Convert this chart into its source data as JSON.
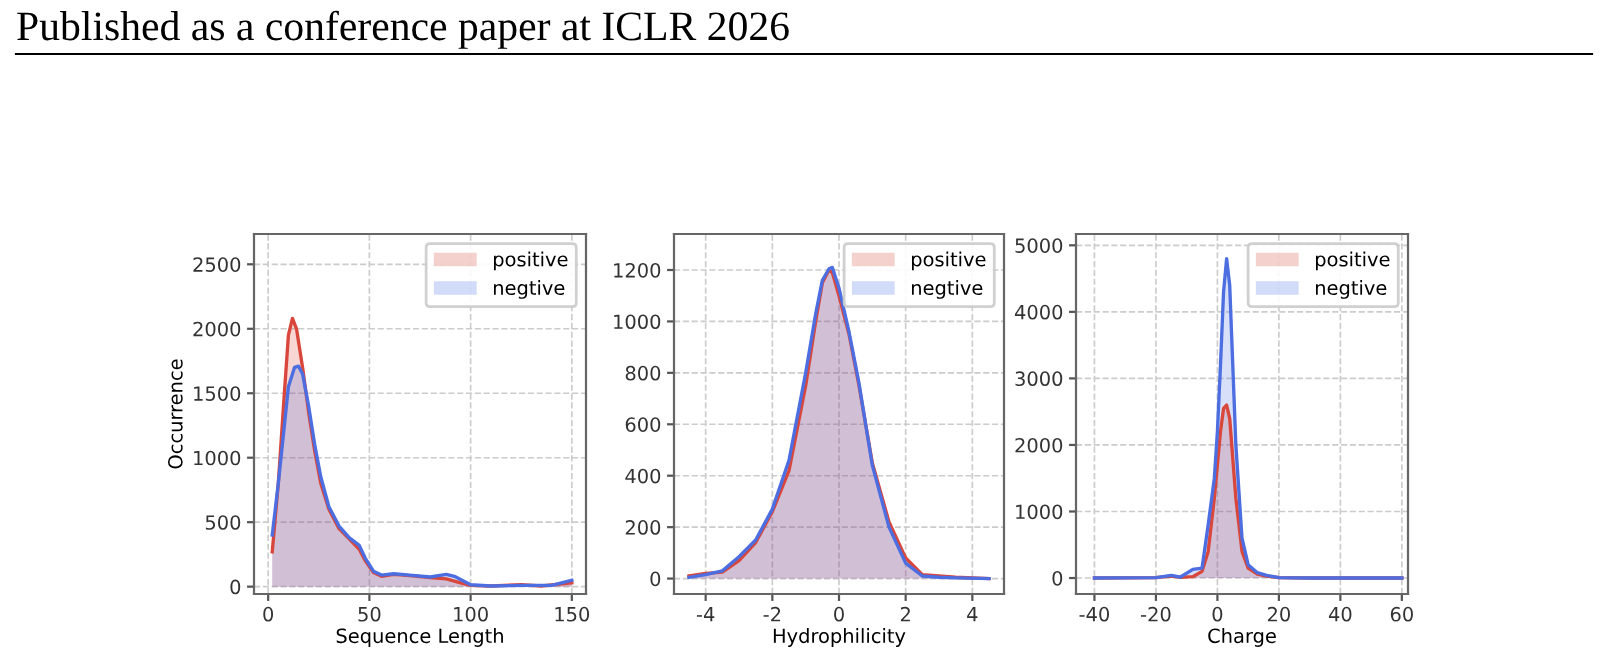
{
  "chart_data": [
    {
      "type": "area",
      "ylabel": "Occurrence",
      "xlabel": "Sequence Length",
      "annotations": [
        "Published as a conference paper at ICLR 2026"
      ],
      "xlim": [
        -7,
        157
      ],
      "xticks": [
        0,
        50,
        100,
        150
      ],
      "ylim": [
        -57,
        2735
      ],
      "yticks": [
        0,
        500,
        1000,
        1500,
        2000,
        2500
      ],
      "grid": true,
      "legend": "top right",
      "series": [
        {
          "name": "positive",
          "color": "#d9463b",
          "x": [
            2,
            5,
            8,
            10,
            12,
            14,
            17,
            20,
            23,
            26,
            30,
            35,
            40,
            45,
            48,
            52,
            56,
            62,
            70,
            80,
            88,
            95,
            100,
            110,
            125,
            135,
            150
          ],
          "values": [
            270,
            800,
            1500,
            1950,
            2080,
            2000,
            1700,
            1350,
            1050,
            800,
            600,
            450,
            370,
            290,
            200,
            110,
            80,
            95,
            85,
            70,
            60,
            30,
            10,
            5,
            15,
            5,
            30
          ]
        },
        {
          "name": "negtive",
          "color": "#4c6ee0",
          "x": [
            2,
            5,
            8,
            10,
            13,
            15,
            17,
            20,
            23,
            26,
            30,
            35,
            40,
            45,
            48,
            52,
            56,
            62,
            70,
            80,
            88,
            92,
            100,
            110,
            125,
            140,
            150
          ],
          "values": [
            400,
            800,
            1250,
            1550,
            1700,
            1710,
            1650,
            1400,
            1100,
            850,
            620,
            470,
            380,
            320,
            220,
            120,
            90,
            100,
            90,
            75,
            95,
            80,
            15,
            5,
            10,
            10,
            50
          ]
        }
      ]
    },
    {
      "type": "area",
      "xlabel": "Hydrophilicity",
      "xlim": [
        -4.95,
        4.95
      ],
      "xticks": [
        -4,
        -2,
        0,
        2,
        4
      ],
      "ylim": [
        -60,
        1340
      ],
      "yticks": [
        0,
        200,
        400,
        600,
        800,
        1000,
        1200
      ],
      "grid": true,
      "legend": "top right",
      "series": [
        {
          "name": "positive",
          "color": "#d9463b",
          "x": [
            -4.5,
            -4,
            -3.5,
            -3,
            -2.5,
            -2,
            -1.5,
            -1,
            -0.7,
            -0.5,
            -0.3,
            -0.2,
            0,
            0.3,
            0.6,
            1,
            1.5,
            2,
            2.5,
            3,
            3.5,
            4.5
          ],
          "values": [
            10,
            20,
            25,
            70,
            140,
            260,
            420,
            750,
            1000,
            1150,
            1200,
            1190,
            1100,
            950,
            750,
            450,
            220,
            80,
            15,
            10,
            5,
            0
          ]
        },
        {
          "name": "negtive",
          "color": "#4c6ee0",
          "x": [
            -4.5,
            -4,
            -3.5,
            -3,
            -2.5,
            -2,
            -1.5,
            -1,
            -0.7,
            -0.5,
            -0.3,
            -0.2,
            0,
            0.3,
            0.6,
            1,
            1.5,
            2,
            2.5,
            3,
            3.5,
            4.5
          ],
          "values": [
            5,
            15,
            30,
            85,
            150,
            270,
            460,
            800,
            1030,
            1160,
            1205,
            1210,
            1130,
            960,
            760,
            440,
            200,
            60,
            10,
            5,
            3,
            0
          ]
        }
      ]
    },
    {
      "type": "area",
      "xlabel": "Charge",
      "xlim": [
        -46,
        62
      ],
      "xticks": [
        -40,
        -20,
        0,
        20,
        40,
        60
      ],
      "ylim": [
        -240,
        5170
      ],
      "yticks": [
        0,
        1000,
        2000,
        3000,
        4000,
        5000
      ],
      "grid": true,
      "legend": "top right",
      "series": [
        {
          "name": "positive",
          "color": "#d9463b",
          "x": [
            -40,
            -20,
            -15,
            -12,
            -8,
            -5,
            -3,
            -1,
            0,
            1,
            2,
            3,
            4,
            5,
            6,
            8,
            10,
            13,
            16,
            20,
            30,
            60
          ],
          "values": [
            0,
            5,
            30,
            10,
            20,
            100,
            400,
            1200,
            1700,
            2200,
            2550,
            2600,
            2400,
            1800,
            1200,
            400,
            150,
            60,
            30,
            5,
            0,
            0
          ]
        },
        {
          "name": "negtive",
          "color": "#4c6ee0",
          "x": [
            -40,
            -20,
            -15,
            -12,
            -8,
            -5,
            -3,
            -1,
            0,
            1,
            2,
            3,
            4,
            5,
            6,
            8,
            10,
            13,
            16,
            20,
            30,
            60
          ],
          "values": [
            0,
            5,
            40,
            15,
            130,
            150,
            800,
            1500,
            2200,
            3200,
            4300,
            4800,
            4400,
            3200,
            2000,
            600,
            200,
            80,
            40,
            5,
            0,
            0
          ]
        }
      ]
    }
  ]
}
